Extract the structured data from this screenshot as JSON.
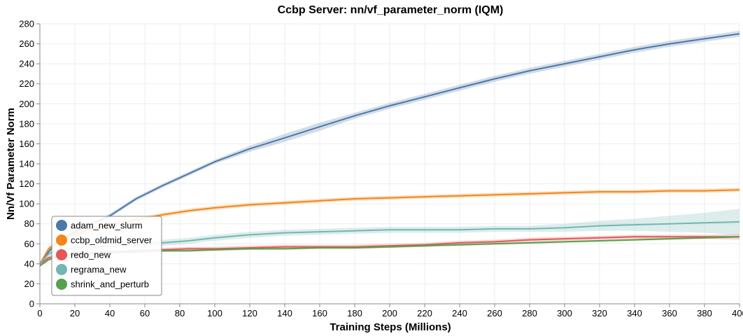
{
  "chart_data": {
    "type": "line",
    "title": "Ccbp Server: nn/vf_parameter_norm (IQM)",
    "xlabel": "Training Steps (Millions)",
    "ylabel": "Nn/Vf Parameter Norm",
    "xlim": [
      0,
      400
    ],
    "ylim": [
      0,
      280
    ],
    "xticks": [
      0,
      20,
      40,
      60,
      80,
      100,
      120,
      140,
      160,
      180,
      200,
      220,
      240,
      260,
      280,
      300,
      320,
      340,
      360,
      380,
      400
    ],
    "yticks": [
      0,
      20,
      40,
      60,
      80,
      100,
      120,
      140,
      160,
      180,
      200,
      220,
      240,
      260,
      280
    ],
    "grid": true,
    "legend_position": "bottom-left",
    "series": [
      {
        "name": "adam_new_slurm",
        "color": "#4c78a8",
        "x": [
          0,
          5,
          10,
          20,
          30,
          40,
          55,
          70,
          85,
          100,
          120,
          140,
          160,
          180,
          200,
          220,
          240,
          260,
          280,
          300,
          320,
          340,
          360,
          380,
          400
        ],
        "y": [
          40,
          52,
          62,
          72,
          80,
          88,
          105,
          118,
          130,
          142,
          155,
          166,
          177,
          188,
          198,
          207,
          216,
          225,
          233,
          240,
          247,
          254,
          260,
          265,
          270
        ],
        "band_width": [
          1,
          2,
          2,
          2,
          2,
          2,
          2,
          2,
          2,
          2,
          3,
          4,
          4,
          3,
          3,
          3,
          3,
          3,
          3,
          3,
          3,
          3,
          3,
          3,
          3
        ]
      },
      {
        "name": "ccbp_oldmid_server",
        "color": "#f58518",
        "x": [
          0,
          5,
          10,
          20,
          30,
          40,
          55,
          70,
          85,
          100,
          120,
          140,
          160,
          180,
          200,
          220,
          240,
          260,
          280,
          300,
          320,
          340,
          360,
          380,
          400
        ],
        "y": [
          40,
          55,
          62,
          70,
          75,
          79,
          84,
          89,
          93,
          96,
          99,
          101,
          103,
          105,
          106,
          107,
          108,
          109,
          110,
          111,
          112,
          112,
          113,
          113,
          114
        ],
        "band_width": [
          1,
          2,
          2,
          2,
          2,
          2,
          2,
          2,
          2,
          2,
          2,
          2,
          2,
          2,
          2,
          2,
          2,
          2,
          2,
          2,
          2,
          2,
          2,
          2,
          2
        ]
      },
      {
        "name": "redo_new",
        "color": "#e45756",
        "x": [
          0,
          5,
          10,
          20,
          30,
          40,
          55,
          70,
          85,
          100,
          120,
          140,
          160,
          180,
          200,
          220,
          240,
          260,
          280,
          300,
          320,
          340,
          360,
          380,
          400
        ],
        "y": [
          40,
          46,
          48,
          50,
          51,
          52,
          53,
          54,
          55,
          55,
          56,
          57,
          57,
          57,
          58,
          59,
          61,
          62,
          64,
          65,
          66,
          67,
          67,
          67,
          67
        ],
        "band_width": [
          1,
          2,
          2,
          2,
          2,
          2,
          2,
          2,
          2,
          2,
          2,
          2,
          2,
          2,
          2,
          2,
          2,
          2,
          2,
          2,
          2,
          2,
          2,
          2,
          3
        ]
      },
      {
        "name": "regrama_new",
        "color": "#72b7b2",
        "x": [
          0,
          5,
          10,
          20,
          30,
          40,
          55,
          70,
          85,
          100,
          120,
          140,
          160,
          180,
          200,
          220,
          240,
          260,
          280,
          300,
          320,
          340,
          360,
          380,
          400
        ],
        "y": [
          40,
          50,
          53,
          56,
          57,
          58,
          59,
          61,
          63,
          66,
          69,
          71,
          72,
          73,
          74,
          74,
          74,
          75,
          75,
          76,
          78,
          79,
          80,
          81,
          82
        ],
        "band_width": [
          1,
          3,
          3,
          3,
          3,
          3,
          3,
          3,
          3,
          3,
          3,
          3,
          3,
          3,
          3,
          3,
          3,
          3,
          3,
          4,
          5,
          6,
          8,
          10,
          13
        ]
      },
      {
        "name": "shrink_and_perturb",
        "color": "#54a24b",
        "x": [
          0,
          5,
          10,
          20,
          30,
          40,
          55,
          70,
          85,
          100,
          120,
          140,
          160,
          180,
          200,
          220,
          240,
          260,
          280,
          300,
          320,
          340,
          360,
          380,
          400
        ],
        "y": [
          38,
          44,
          47,
          49,
          50,
          51,
          52,
          53,
          53,
          54,
          55,
          55,
          56,
          56,
          57,
          58,
          59,
          60,
          61,
          62,
          63,
          64,
          65,
          66,
          67
        ],
        "band_width": [
          1,
          1,
          1,
          1,
          1,
          1,
          1,
          1,
          1,
          1,
          1,
          1,
          1,
          1,
          1,
          1,
          1,
          1,
          1,
          1,
          1,
          1,
          1,
          1,
          1
        ]
      }
    ]
  }
}
